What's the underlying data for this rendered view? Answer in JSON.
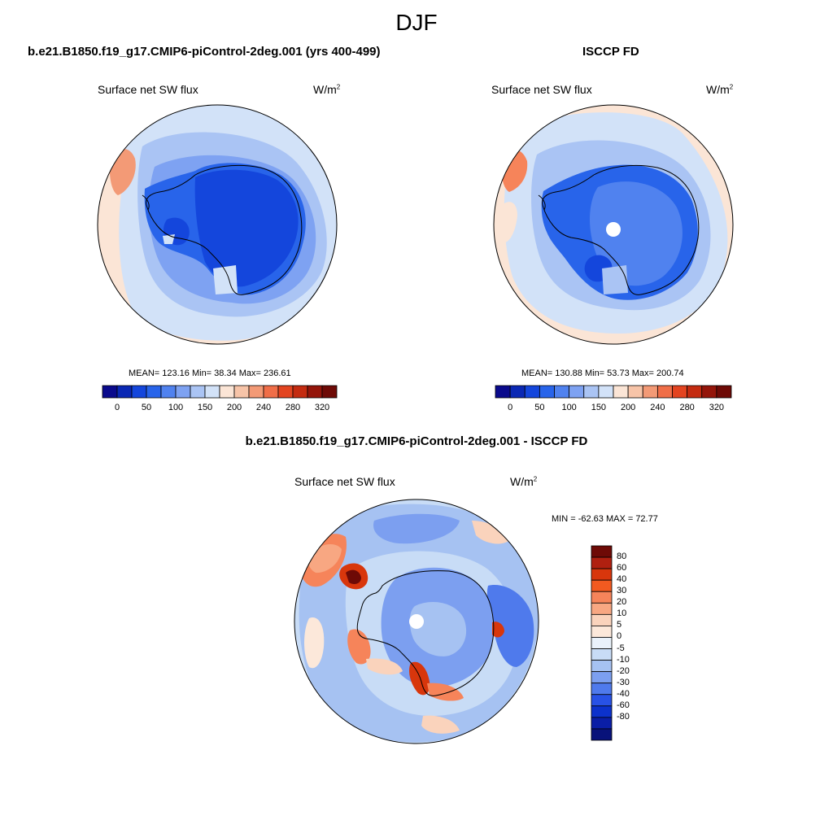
{
  "season": "DJF",
  "panels": {
    "model": {
      "title": "b.e21.B1850.f19_g17.CMIP6-piControl-2deg.001 (yrs 400-499)",
      "variable": "Surface net SW flux",
      "units_base": "W/m",
      "units_exp": "2",
      "stats": "MEAN= 123.16  Min=  38.34  Max= 236.61"
    },
    "obs": {
      "title": "ISCCP FD",
      "variable": "Surface net SW flux",
      "units_base": "W/m",
      "units_exp": "2",
      "stats": "MEAN= 130.88  Min=  53.73  Max= 200.74"
    },
    "diff": {
      "title": "b.e21.B1850.f19_g17.CMIP6-piControl-2deg.001 - ISCCP FD",
      "variable": "Surface net SW flux",
      "units_base": "W/m",
      "units_exp": "2",
      "stats": "MIN = -62.63 MAX =  72.77"
    }
  },
  "colorbar_abs": {
    "colors": [
      "#0a0a8c",
      "#0a28b4",
      "#1446dc",
      "#2864ea",
      "#5082ef",
      "#7ea2f2",
      "#aac4f4",
      "#d2e2f8",
      "#fbe5d6",
      "#f7c4a8",
      "#f39a76",
      "#f06e48",
      "#e34420",
      "#c42b10",
      "#94150a",
      "#6e0a06"
    ],
    "tick_labels": [
      "0",
      "50",
      "100",
      "150",
      "200",
      "240",
      "280",
      "320"
    ]
  },
  "colorbar_diff": {
    "colors": [
      "#6e0a06",
      "#b02010",
      "#d8360c",
      "#f25a20",
      "#f6845a",
      "#f8a782",
      "#fad3bc",
      "#fce8da",
      "#eaf2fb",
      "#c8dcf6",
      "#a6c2f2",
      "#7c9ff0",
      "#4f7aec",
      "#2852e6",
      "#0c32cc",
      "#0a1ea6",
      "#08127a"
    ],
    "tick_labels": [
      "80",
      "60",
      "40",
      "30",
      "20",
      "10",
      "5",
      "0",
      "-5",
      "-10",
      "-20",
      "-30",
      "-40",
      "-60",
      "-80"
    ]
  }
}
